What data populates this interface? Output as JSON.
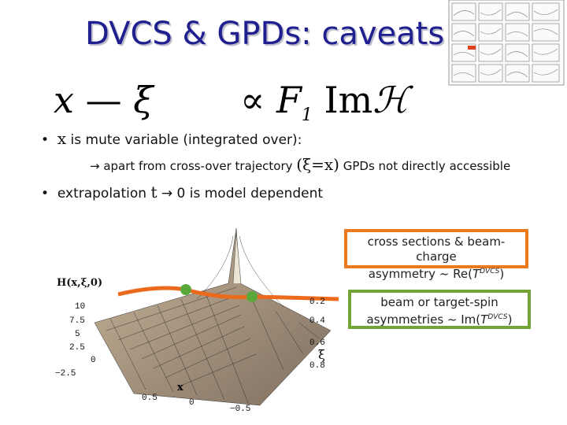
{
  "header": {
    "title": "DVCS & GPDs: caveats"
  },
  "formula": {
    "x": "x",
    "dash": "—",
    "xi": "ξ",
    "prop": "∝",
    "f": "F",
    "sub": "1",
    "im": "Im",
    "h": "ℋ"
  },
  "bullets": [
    {
      "var": "x",
      "text": " is mute variable (integrated over):"
    },
    {
      "text": "→ apart from cross-over trajectory ",
      "math": "(ξ=x)",
      "rest": " GPDs not directly accessible"
    },
    {
      "text": "extrapolation ",
      "math": "t",
      "rest": " → 0  is model dependent"
    }
  ],
  "boxes": [
    {
      "line1": "cross sections & beam-charge",
      "line2": "asymmetry ~ Re(",
      "t": "T",
      "sup": "DVCS",
      "close": ")"
    },
    {
      "line1": "beam or target-spin",
      "line2": "asymmetries ~ Im(",
      "t": "T",
      "sup": "DVCS",
      "close": ")"
    }
  ],
  "plot": {
    "zlabel": "H(x,ξ,0)",
    "zticks": [
      "10",
      "7.5",
      "5",
      "2.5",
      "0",
      "−2.5"
    ],
    "xiticks": [
      "0.2",
      "0.4",
      "0.6",
      "0.8"
    ],
    "xilabel": "ξ",
    "xticks": [
      "0.5",
      "0",
      "−0.5"
    ],
    "xlabel": "x"
  }
}
